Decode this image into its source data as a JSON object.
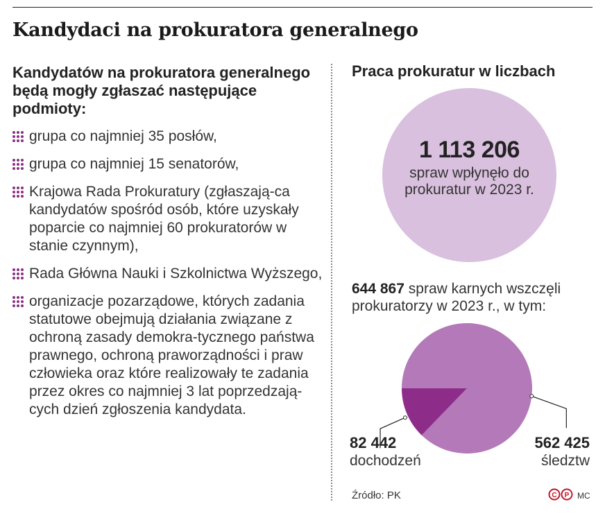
{
  "title": "Kandydaci na prokuratora generalnego",
  "left": {
    "heading": "Kandydatów na prokuratora generalnego będą mogły zgłaszać następujące podmioty:",
    "items": [
      "grupa co najmniej 35 posłów,",
      "grupa co najmniej 15 senatorów,",
      "Krajowa Rada Prokuratury (zgłaszają-ca kandydatów spośród osób, które uzyskały poparcie co najmniej 60 prokuratorów w stanie czynnym),",
      "Rada Główna Nauki i Szkolnictwa Wyższego,",
      "organizacje pozarządowe, których zadania statutowe obejmują działania związane z ochroną zasady demokra-tycznego państwa prawnego, ochroną praworządności i praw człowieka oraz które realizowały te zadania przez okres co najmniej 3 lat poprzedzają-cych dzień zgłoszenia kandydata."
    ]
  },
  "right": {
    "title": "Praca prokuratur w liczbach",
    "bubble_value": "1 113 206",
    "bubble_text": "spraw wpłynęło do prokuratur w 2023 r.",
    "cases_value": "644 867",
    "cases_text": "spraw karnych wszczęli prokuratorzy w 2023 r., w tym:"
  },
  "colors": {
    "accent": "#8a2f82",
    "bubble": "#d9c0de",
    "pie_major": "#b379b8",
    "pie_minor": "#8e2c8a"
  },
  "chart_data": {
    "type": "pie",
    "slices": [
      {
        "label": "dochodzeń",
        "value": 82442,
        "value_text": "82 442",
        "color": "#8e2c8a"
      },
      {
        "label": "śledztw",
        "value": 562425,
        "value_text": "562 425",
        "color": "#b379b8"
      }
    ]
  },
  "source": "Źródło: PK",
  "author": "MC",
  "logo_text": "CP"
}
